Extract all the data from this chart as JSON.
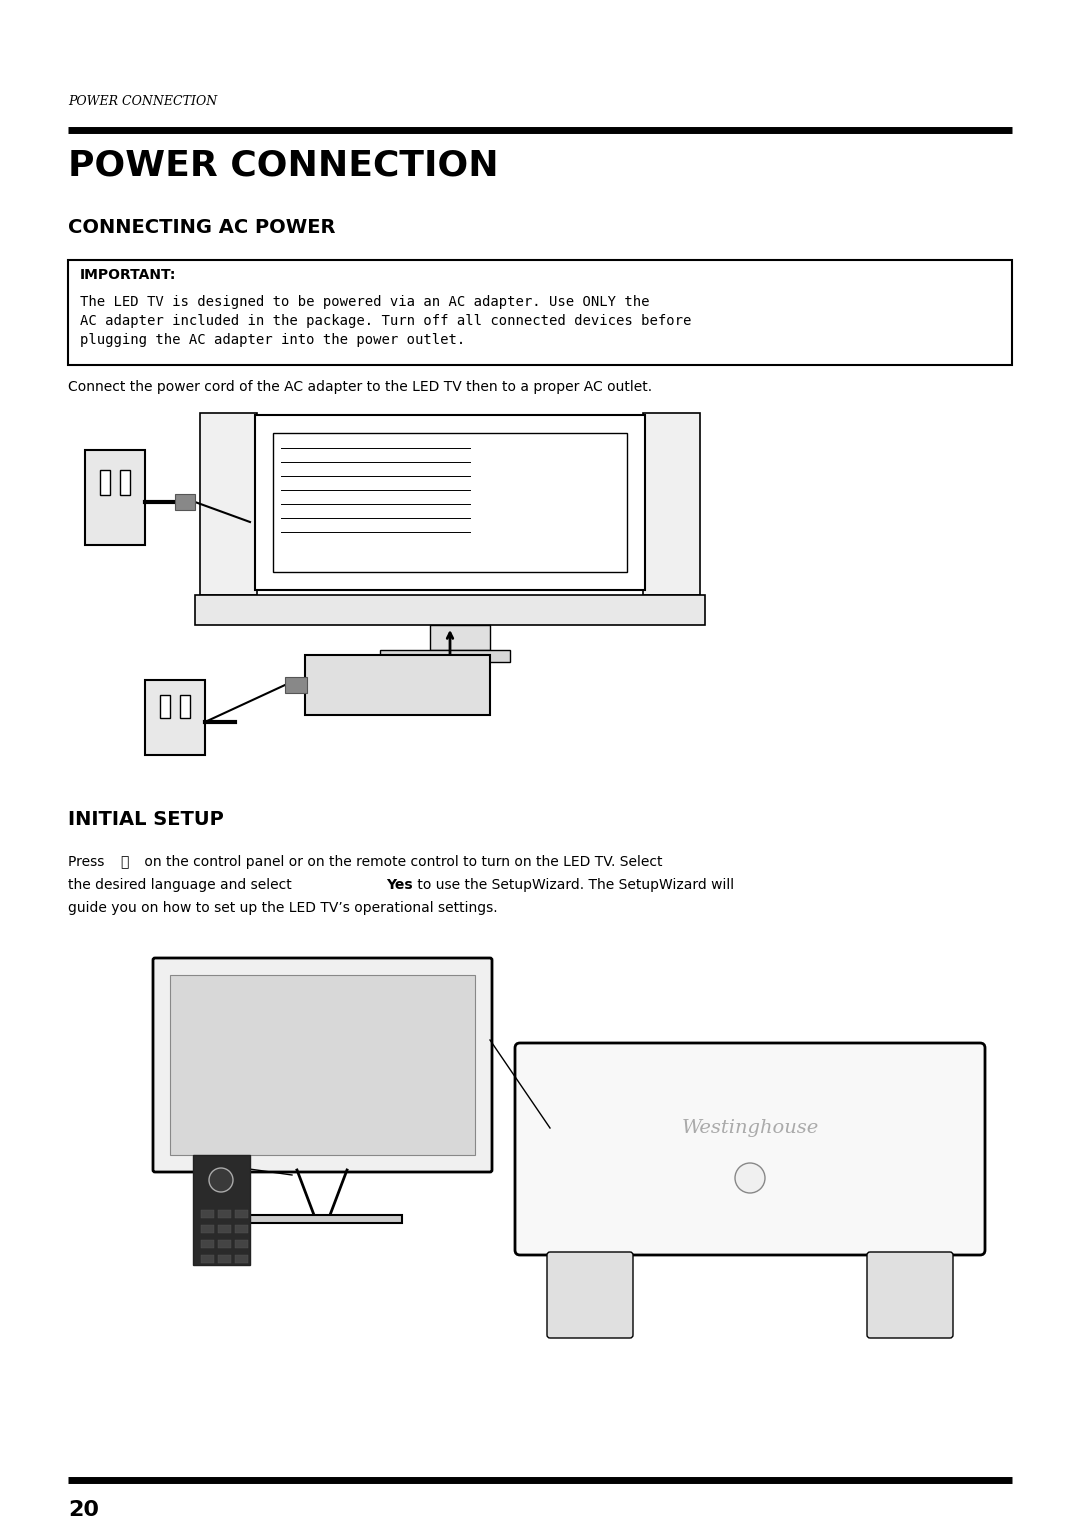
{
  "bg_color": "#ffffff",
  "page_width": 10.8,
  "page_height": 15.29,
  "header_italic": "POWER CONNECTION",
  "main_title": "POWER CONNECTION",
  "section1_title": "CONNECTING AC POWER",
  "important_label": "IMPORTANT:",
  "important_text": "The LED TV is designed to be powered via an AC adapter. Use ONLY the\nAC adapter included in the package. Turn off all connected devices before\nplugging the AC adapter into the power outlet.",
  "connect_text": "Connect the power cord of the AC adapter to the LED TV then to a proper AC outlet.",
  "section2_title": "INITIAL SETUP",
  "initial_para": "Press ⏼ on the control panel or on the remote control to turn on the LED TV. Select\nthe desired language and select {Yes} to use the SetupWizard. The SetupWizard will\nguide you on how to set up the LED TV’s operational settings.",
  "page_number": "20",
  "line_color": "#000000",
  "text_color": "#000000"
}
